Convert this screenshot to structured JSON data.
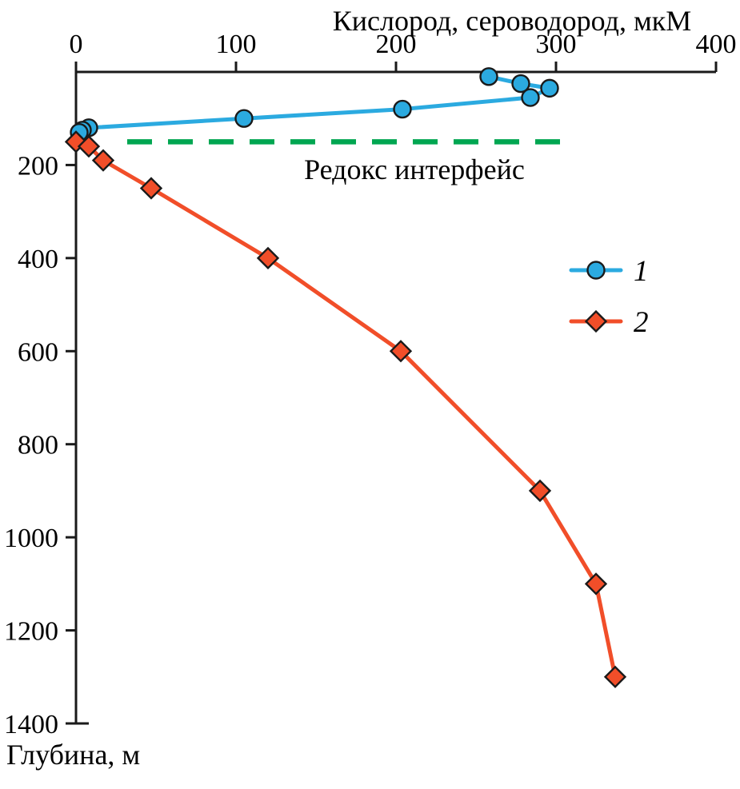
{
  "figure": {
    "background": "#ffffff"
  },
  "chart_data": {
    "type": "line",
    "title": "Кислород, сероводород, мкМ",
    "xlabel": "Кислород, сероводород, мкМ",
    "ylabel": "Глубина, м",
    "x_axis_position": "top",
    "y_axis_inverted": true,
    "grid": false,
    "xlim": [
      0,
      400
    ],
    "ylim": [
      0,
      1400
    ],
    "x_ticks": [
      0,
      100,
      200,
      300,
      400
    ],
    "y_ticks": [
      200,
      400,
      600,
      800,
      1000,
      1200,
      1400
    ],
    "axis_color": "#1a1a1a",
    "series": [
      {
        "name": "1",
        "label": "1",
        "marker": "circle",
        "color": "#2BAAE0",
        "marker_edge": "#1a1a1a",
        "points": [
          [
            258,
            10
          ],
          [
            278,
            25
          ],
          [
            296,
            35
          ],
          [
            284,
            55
          ],
          [
            204,
            80
          ],
          [
            105,
            100
          ],
          [
            8,
            120
          ],
          [
            4,
            125
          ],
          [
            2,
            130
          ]
        ]
      },
      {
        "name": "2",
        "label": "2",
        "marker": "diamond",
        "color": "#F14E29",
        "marker_edge": "#1a1a1a",
        "points": [
          [
            0,
            150
          ],
          [
            8,
            160
          ],
          [
            17,
            190
          ],
          [
            47,
            250
          ],
          [
            120,
            400
          ],
          [
            203,
            600
          ],
          [
            290,
            900
          ],
          [
            325,
            1100
          ],
          [
            337,
            1300
          ]
        ]
      }
    ],
    "annotation": {
      "label": "Редокс интерфейс",
      "depth_m": 150,
      "x_range_um": [
        32,
        303
      ],
      "color": "#00A651",
      "line_style": "dashed"
    },
    "legend": {
      "position": "right-center",
      "entries": [
        {
          "label": "1",
          "series": "1"
        },
        {
          "label": "2",
          "series": "2"
        }
      ]
    }
  }
}
